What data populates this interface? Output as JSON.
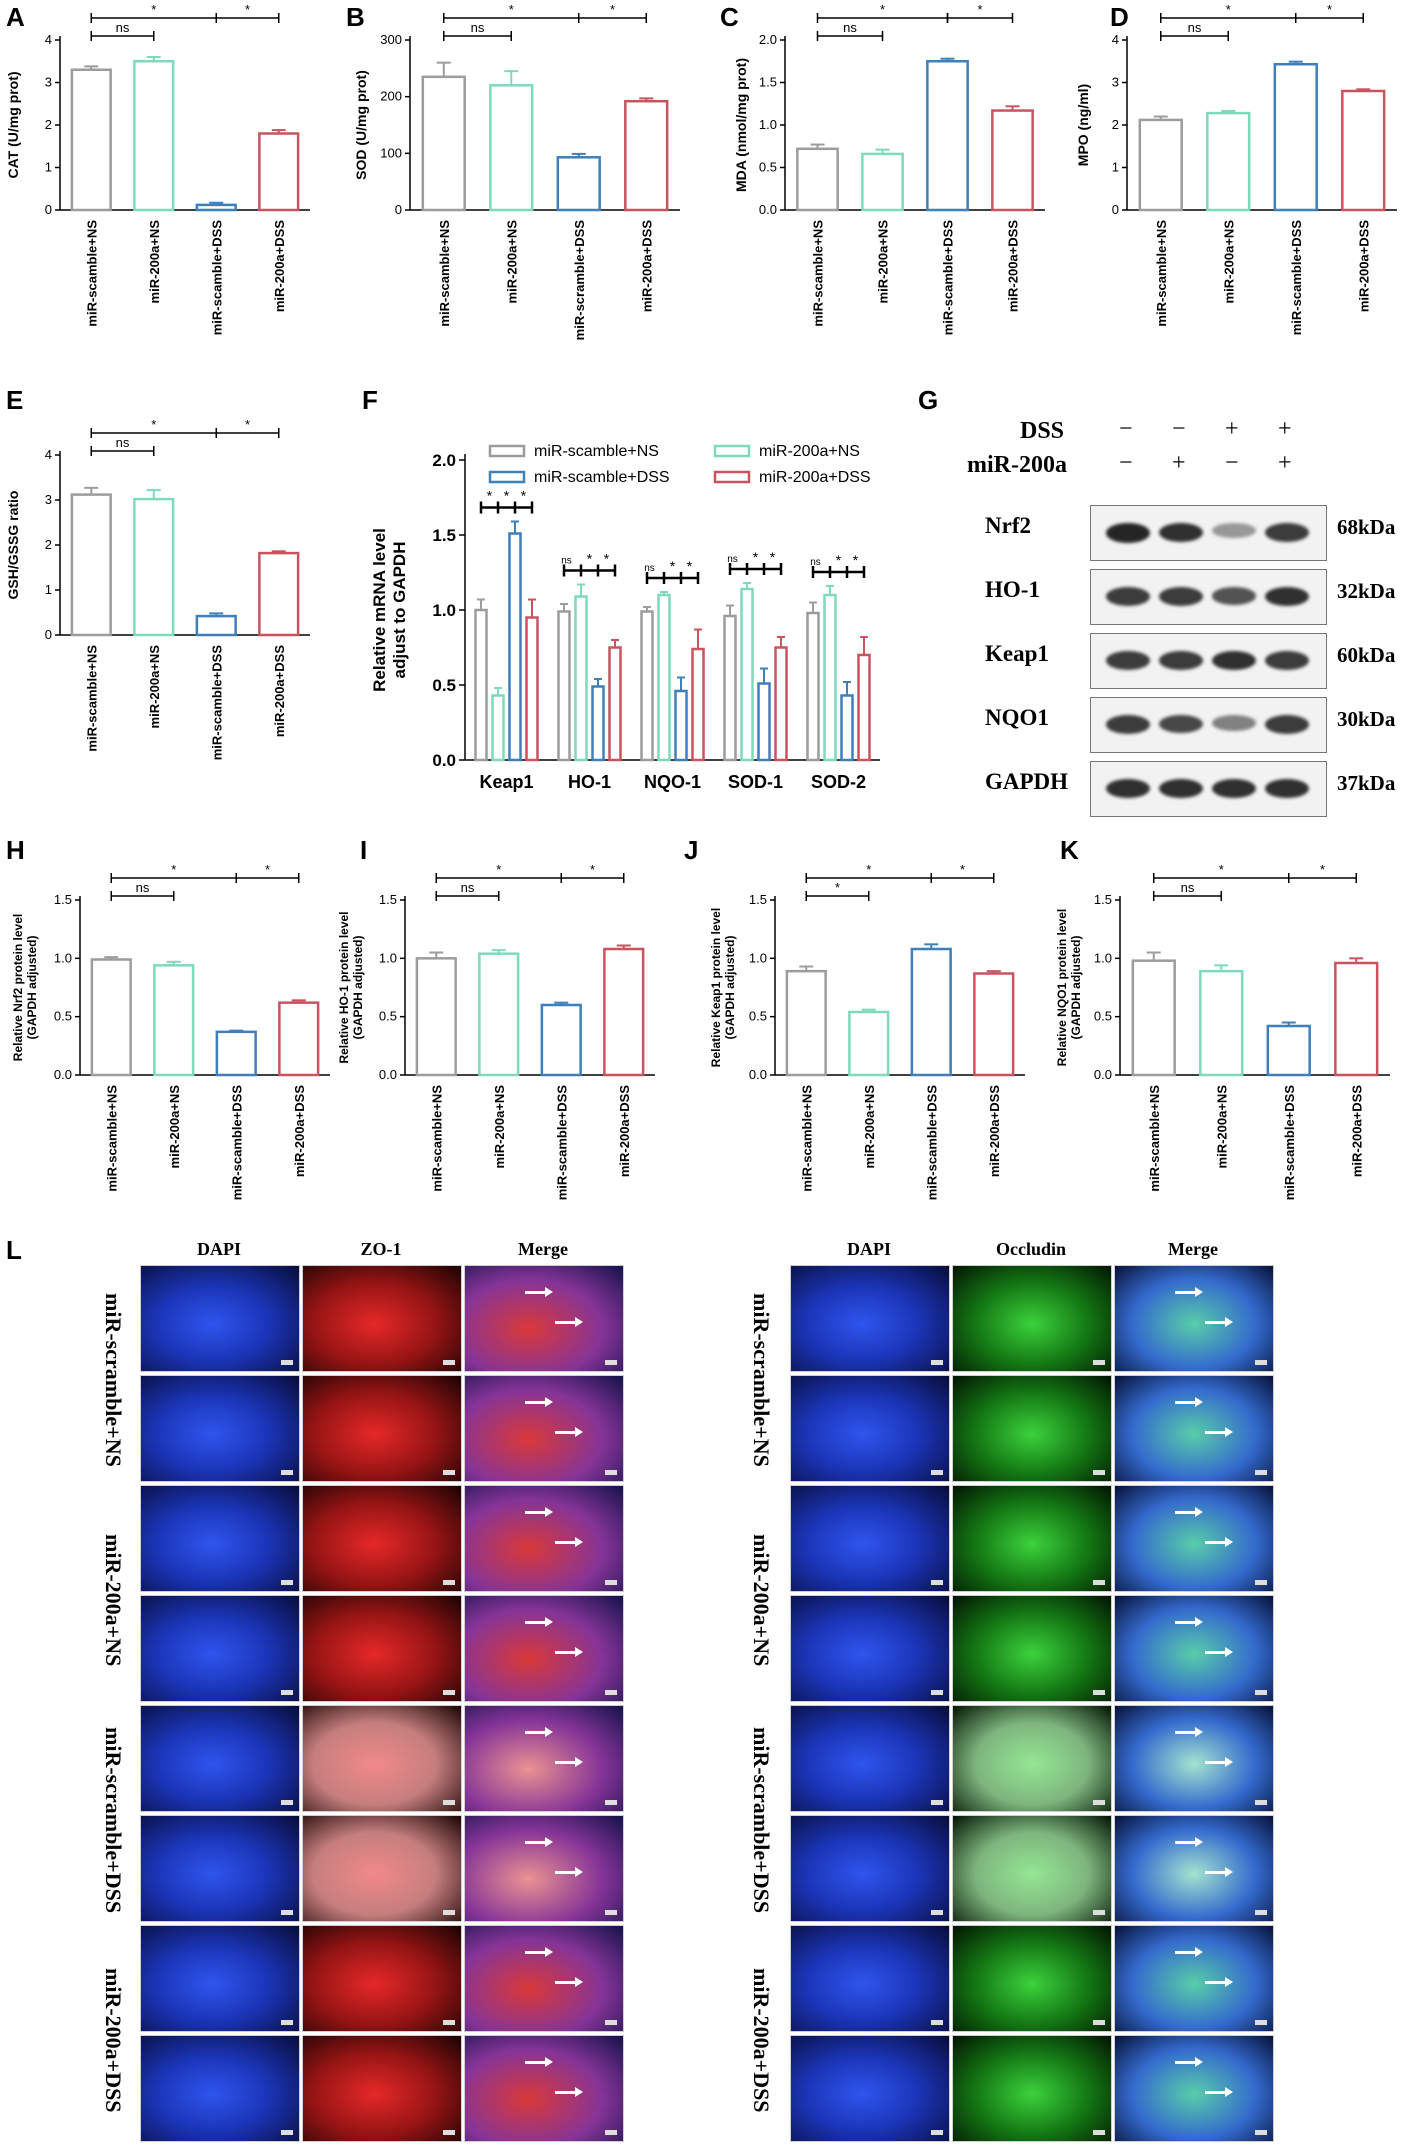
{
  "colors": {
    "scramble_ns": "#9c9c9c",
    "mir200a_ns": "#7fd9bc",
    "scramble_dss": "#3f7fba",
    "mir200a_dss": "#c9535f",
    "dapi": "#1f3fd6",
    "zo1": "#d62323",
    "occludin": "#2fc22f"
  },
  "groups": [
    "miR-scamble+NS",
    "miR-200a+NS",
    "miR-scamble+DSS",
    "miR-200a+DSS"
  ],
  "panel_letters": [
    "A",
    "B",
    "C",
    "D",
    "E",
    "F",
    "G",
    "H",
    "I",
    "J",
    "K",
    "L"
  ],
  "chart_data": [
    {
      "id": "A",
      "type": "bar",
      "categories": [
        "miR-scamble+NS",
        "miR-200a+NS",
        "miR-scamble+DSS",
        "miR-200a+DSS"
      ],
      "values": [
        3.3,
        3.5,
        0.12,
        1.8
      ],
      "errors": [
        0.08,
        0.1,
        0.05,
        0.08
      ],
      "ylabel": "CAT (U/mg prot)",
      "ylim": [
        0,
        4
      ],
      "yticks": [
        0,
        1,
        2,
        3,
        4
      ],
      "ytick_labels": [
        "0",
        "1",
        "2",
        "3",
        "4"
      ],
      "comparisons": [
        {
          "a": 0,
          "b": 1,
          "label": "ns"
        },
        {
          "a": 0,
          "b": 2,
          "label": "*"
        },
        {
          "a": 2,
          "b": 3,
          "label": "*"
        }
      ]
    },
    {
      "id": "B",
      "type": "bar",
      "categories": [
        "miR-scamble+NS",
        "miR-200a+NS",
        "miR-scramble+DSS",
        "miR-200a+DSS"
      ],
      "values": [
        235,
        220,
        93,
        192
      ],
      "errors": [
        25,
        25,
        6,
        5
      ],
      "ylabel": "SOD (U/mg prot)",
      "ylim": [
        0,
        300
      ],
      "yticks": [
        0,
        100,
        200,
        300
      ],
      "ytick_labels": [
        "0",
        "100",
        "200",
        "300"
      ],
      "comparisons": [
        {
          "a": 0,
          "b": 1,
          "label": "ns"
        },
        {
          "a": 0,
          "b": 2,
          "label": "*"
        },
        {
          "a": 2,
          "b": 3,
          "label": "*"
        }
      ]
    },
    {
      "id": "C",
      "type": "bar",
      "categories": [
        "miR-scamble+NS",
        "miR-200a+NS",
        "miR-scamble+DSS",
        "miR-200a+DSS"
      ],
      "values": [
        0.72,
        0.66,
        1.75,
        1.17
      ],
      "errors": [
        0.05,
        0.05,
        0.03,
        0.05
      ],
      "ylabel": "MDA (nmol/mg prot)",
      "ylim": [
        0,
        2.0
      ],
      "yticks": [
        0,
        0.5,
        1.0,
        1.5,
        2.0
      ],
      "ytick_labels": [
        "0.0",
        "0.5",
        "1.0",
        "1.5",
        "2.0"
      ],
      "comparisons": [
        {
          "a": 0,
          "b": 1,
          "label": "ns"
        },
        {
          "a": 0,
          "b": 2,
          "label": "*"
        },
        {
          "a": 2,
          "b": 3,
          "label": "*"
        }
      ]
    },
    {
      "id": "D",
      "type": "bar",
      "categories": [
        "miR-scamble+NS",
        "miR-200a+NS",
        "miR-scamble+DSS",
        "miR-200a+DSS"
      ],
      "values": [
        2.12,
        2.28,
        3.43,
        2.8
      ],
      "errors": [
        0.08,
        0.05,
        0.06,
        0.04
      ],
      "ylabel": "MPO (ng/ml)",
      "ylim": [
        0,
        4
      ],
      "yticks": [
        0,
        1,
        2,
        3,
        4
      ],
      "ytick_labels": [
        "0",
        "1",
        "2",
        "3",
        "4"
      ],
      "comparisons": [
        {
          "a": 0,
          "b": 1,
          "label": "ns"
        },
        {
          "a": 0,
          "b": 2,
          "label": "*"
        },
        {
          "a": 2,
          "b": 3,
          "label": "*"
        }
      ]
    },
    {
      "id": "E",
      "type": "bar",
      "categories": [
        "miR-scamble+NS",
        "miR-200a+NS",
        "miR-scamble+DSS",
        "miR-200a+DSS"
      ],
      "values": [
        3.12,
        3.02,
        0.42,
        1.82
      ],
      "errors": [
        0.15,
        0.2,
        0.06,
        0.04
      ],
      "ylabel": "GSH/GSSG ratio",
      "ylim": [
        0,
        4
      ],
      "yticks": [
        0,
        1,
        2,
        3,
        4
      ],
      "ytick_labels": [
        "0",
        "1",
        "2",
        "3",
        "4"
      ],
      "comparisons": [
        {
          "a": 0,
          "b": 1,
          "label": "ns"
        },
        {
          "a": 0,
          "b": 2,
          "label": "*"
        },
        {
          "a": 2,
          "b": 3,
          "label": "*"
        }
      ]
    },
    {
      "id": "F",
      "type": "bar",
      "categories": [
        "Keap1",
        "HO-1",
        "NQO-1",
        "SOD-1",
        "SOD-2"
      ],
      "series": [
        {
          "name": "miR-scamble+NS",
          "values": [
            1.0,
            0.99,
            0.99,
            0.96,
            0.98
          ],
          "errors": [
            0.07,
            0.05,
            0.03,
            0.07,
            0.07
          ]
        },
        {
          "name": "miR-200a+NS",
          "values": [
            0.43,
            1.09,
            1.1,
            1.14,
            1.1
          ],
          "errors": [
            0.05,
            0.08,
            0.02,
            0.04,
            0.06
          ]
        },
        {
          "name": "miR-scamble+DSS",
          "values": [
            1.51,
            0.49,
            0.46,
            0.51,
            0.43
          ],
          "errors": [
            0.08,
            0.05,
            0.09,
            0.1,
            0.09
          ]
        },
        {
          "name": "miR-200a+DSS",
          "values": [
            0.95,
            0.75,
            0.74,
            0.75,
            0.7
          ],
          "errors": [
            0.12,
            0.05,
            0.13,
            0.07,
            0.12
          ]
        }
      ],
      "ylabel": "Relative mRNA level adjust to GAPDH",
      "ylabel_lines": [
        "Relative mRNA level",
        "adjust to GAPDH"
      ],
      "ylim": [
        0,
        2.0
      ],
      "yticks": [
        0,
        0.5,
        1.0,
        1.5,
        2.0
      ],
      "ytick_labels": [
        "0.0",
        "0.5",
        "1.0",
        "1.5",
        "2.0"
      ],
      "legend": "top",
      "sig": [
        [
          "*",
          "*",
          "*"
        ],
        [
          "ns",
          "*",
          "*"
        ],
        [
          "ns",
          "*",
          "*"
        ],
        [
          "ns",
          "*",
          "*"
        ],
        [
          "ns",
          "*",
          "*"
        ]
      ]
    },
    {
      "id": "H",
      "type": "bar",
      "categories": [
        "miR-scamble+NS",
        "miR-200a+NS",
        "miR-scamble+DSS",
        "miR-200a+DSS"
      ],
      "values": [
        0.99,
        0.94,
        0.37,
        0.62
      ],
      "errors": [
        0.02,
        0.03,
        0.01,
        0.02
      ],
      "ylabel": "Relative Nrf2 protein level (GAPDH adjusted)",
      "ylabel_lines": [
        "Relative Nrf2 protein level",
        "(GAPDH adjusted)"
      ],
      "ylim": [
        0,
        1.5
      ],
      "yticks": [
        0,
        0.5,
        1.0,
        1.5
      ],
      "ytick_labels": [
        "0.0",
        "0.5",
        "1.0",
        "1.5"
      ],
      "comparisons": [
        {
          "a": 0,
          "b": 1,
          "label": "ns"
        },
        {
          "a": 0,
          "b": 2,
          "label": "*"
        },
        {
          "a": 2,
          "b": 3,
          "label": "*"
        }
      ]
    },
    {
      "id": "I",
      "type": "bar",
      "categories": [
        "miR-scamble+NS",
        "miR-200a+NS",
        "miR-scamble+DSS",
        "miR-200a+DSS"
      ],
      "values": [
        1.0,
        1.04,
        0.6,
        1.08
      ],
      "errors": [
        0.05,
        0.03,
        0.02,
        0.03
      ],
      "ylabel": "Relative HO-1 protein level (GAPDH adjusted)",
      "ylabel_lines": [
        "Relative HO-1 protein level",
        "(GAPDH adjusted)"
      ],
      "ylim": [
        0,
        1.5
      ],
      "yticks": [
        0,
        0.5,
        1.0,
        1.5
      ],
      "ytick_labels": [
        "0.0",
        "0.5",
        "1.0",
        "1.5"
      ],
      "comparisons": [
        {
          "a": 0,
          "b": 1,
          "label": "ns"
        },
        {
          "a": 0,
          "b": 2,
          "label": "*"
        },
        {
          "a": 2,
          "b": 3,
          "label": "*"
        }
      ]
    },
    {
      "id": "J",
      "type": "bar",
      "categories": [
        "miR-scamble+NS",
        "miR-200a+NS",
        "miR-scamble+DSS",
        "miR-200a+DSS"
      ],
      "values": [
        0.89,
        0.54,
        1.08,
        0.87
      ],
      "errors": [
        0.04,
        0.02,
        0.04,
        0.02
      ],
      "ylabel": "Relative Keap1 protein level (GAPDH adjusted)",
      "ylabel_lines": [
        "Relative Keap1 protein level",
        "(GAPDH adjusted)"
      ],
      "ylim": [
        0,
        1.5
      ],
      "yticks": [
        0,
        0.5,
        1.0,
        1.5
      ],
      "ytick_labels": [
        "0.0",
        "0.5",
        "1.0",
        "1.5"
      ],
      "comparisons": [
        {
          "a": 0,
          "b": 1,
          "label": "*"
        },
        {
          "a": 0,
          "b": 2,
          "label": "*"
        },
        {
          "a": 2,
          "b": 3,
          "label": "*"
        }
      ]
    },
    {
      "id": "K",
      "type": "bar",
      "categories": [
        "miR-scamble+NS",
        "miR-200a+NS",
        "miR-scamble+DSS",
        "miR-200a+DSS"
      ],
      "values": [
        0.98,
        0.89,
        0.42,
        0.96
      ],
      "errors": [
        0.07,
        0.05,
        0.03,
        0.04
      ],
      "ylabel": "Relative NQO1 protein level (GAPDH adjusted)",
      "ylabel_lines": [
        "Relative NQO1 protein level",
        "(GAPDH adjusted)"
      ],
      "ylim": [
        0,
        1.5
      ],
      "yticks": [
        0,
        0.5,
        1.0,
        1.5
      ],
      "ytick_labels": [
        "0.0",
        "0.5",
        "1.0",
        "1.5"
      ],
      "comparisons": [
        {
          "a": 0,
          "b": 1,
          "label": "ns"
        },
        {
          "a": 0,
          "b": 2,
          "label": "*"
        },
        {
          "a": 2,
          "b": 3,
          "label": "*"
        }
      ]
    }
  ],
  "western_blot": {
    "treatments": [
      {
        "name": "DSS",
        "signs": [
          "−",
          "−",
          "+",
          "+"
        ]
      },
      {
        "name": "miR-200a",
        "signs": [
          "−",
          "+",
          "−",
          "+"
        ]
      }
    ],
    "bands": [
      {
        "protein": "Nrf2",
        "size": "68kDa",
        "intensity": [
          0.95,
          0.9,
          0.45,
          0.85
        ]
      },
      {
        "protein": "HO-1",
        "size": "32kDa",
        "intensity": [
          0.85,
          0.85,
          0.75,
          0.9
        ]
      },
      {
        "protein": "Keap1",
        "size": "60kDa",
        "intensity": [
          0.85,
          0.85,
          0.9,
          0.85
        ]
      },
      {
        "protein": "NQO1",
        "size": "30kDa",
        "intensity": [
          0.85,
          0.8,
          0.55,
          0.85
        ]
      },
      {
        "protein": "GAPDH",
        "size": "37kDa",
        "intensity": [
          0.9,
          0.9,
          0.9,
          0.9
        ]
      }
    ]
  },
  "immunofluorescence": {
    "left_columns": [
      "DAPI",
      "ZO-1",
      "Merge"
    ],
    "right_columns": [
      "DAPI",
      "Occludin",
      "Merge"
    ],
    "rows": [
      "miR-scramble+NS",
      "miR-200a+NS",
      "miR-scramble+DSS",
      "miR-200a+DSS"
    ]
  }
}
